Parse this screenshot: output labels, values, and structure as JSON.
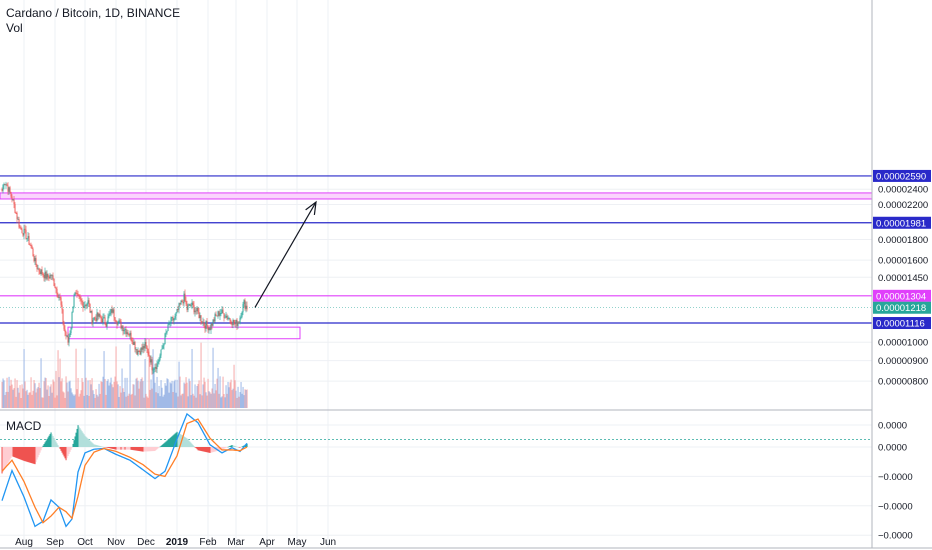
{
  "header": {
    "title": "Cardano / Bitcoin, 1D, BINANCE",
    "volume_label": "Vol",
    "macd_label": "MACD"
  },
  "colors": {
    "up": "#26a69a",
    "down": "#ef5350",
    "vol_up": "#9db7e6",
    "vol_down": "#f5a9a9",
    "blue_line": "#2929c9",
    "magenta": "#e040fb",
    "zone_fill": "#fbd5fd",
    "current_tag": "#26a69a",
    "macd_line": "#2196f3",
    "signal_line": "#ff7f27",
    "hist_up": "#26a69a",
    "hist_up_light": "#b2dfdb",
    "hist_down": "#ef5350",
    "hist_down_light": "#ffcdd2"
  },
  "chart_data": [
    {
      "type": "candlestick",
      "title": "Cardano / Bitcoin, 1D, BINANCE",
      "y_tick_labels": [
        "0.00002400",
        "0.00002200",
        "0.00001800",
        "0.00001600",
        "0.00001450",
        "0.00001000",
        "0.00000900",
        "0.00000800"
      ],
      "y_ticks": [
        2.4e-05,
        2.2e-05,
        1.8e-05,
        1.6e-05,
        1.45e-05,
        1e-05,
        9e-06,
        8e-06
      ],
      "x_tick_labels": [
        "Aug",
        "Sep",
        "Oct",
        "Nov",
        "Dec",
        "2019",
        "Feb",
        "Mar",
        "Apr",
        "May",
        "Jun"
      ],
      "last_price_label": "0.00001218",
      "horizontal_levels": [
        {
          "label": "0.00002590",
          "value": 2.59e-05,
          "color": "#2929c9"
        },
        {
          "label": "0.00001981",
          "value": 1.981e-05,
          "color": "#2929c9"
        },
        {
          "label": "0.00001304",
          "value": 1.304e-05,
          "color": "#e040fb"
        },
        {
          "label": "0.00001116",
          "value": 1.116e-05,
          "color": "#2929c9"
        }
      ],
      "zones": [
        {
          "name": "upper resistance zone",
          "from": 2.27e-05,
          "to": 2.35e-05
        },
        {
          "name": "lower support zone",
          "from": 1.02e-05,
          "to": 1.09e-05
        }
      ],
      "annotations": [
        {
          "type": "arrow",
          "from_date": "2019-03-20",
          "from_price": 1.22e-05,
          "to_date": "2019-05-20",
          "to_price": 2.23e-05
        }
      ],
      "grid": true,
      "price_scale_position": "right",
      "series": [
        {
          "name": "ADA/BTC",
          "kind": "close-price waypoints",
          "dates": [
            "2018-07-10",
            "2018-07-12",
            "2018-07-15",
            "2018-07-20",
            "2018-07-25",
            "2018-07-28",
            "2018-08-02",
            "2018-08-08",
            "2018-08-12",
            "2018-08-15",
            "2018-08-20",
            "2018-08-24",
            "2018-08-28",
            "2018-09-02",
            "2018-09-06",
            "2018-09-10",
            "2018-09-14",
            "2018-09-17",
            "2018-09-20",
            "2018-09-24",
            "2018-09-30",
            "2018-10-04",
            "2018-10-08",
            "2018-10-14",
            "2018-10-22",
            "2018-10-28",
            "2018-11-03",
            "2018-11-08",
            "2018-11-13",
            "2018-11-18",
            "2018-11-22",
            "2018-11-27",
            "2018-11-30",
            "2018-12-04",
            "2018-12-07",
            "2018-12-12",
            "2018-12-16",
            "2018-12-20",
            "2018-12-25",
            "2018-12-30",
            "2019-01-03",
            "2019-01-08",
            "2019-01-11",
            "2019-01-15",
            "2019-01-22",
            "2019-01-28",
            "2019-02-03",
            "2019-02-08",
            "2019-02-13",
            "2019-02-18",
            "2019-02-23",
            "2019-02-28",
            "2019-03-04",
            "2019-03-07",
            "2019-03-09",
            "2019-03-12"
          ],
          "values": [
            2.38e-05,
            2.52e-05,
            2.45e-05,
            2.28e-05,
            2.05e-05,
            1.92e-05,
            1.86e-05,
            1.73e-05,
            1.58e-05,
            1.52e-05,
            1.48e-05,
            1.45e-05,
            1.47e-05,
            1.36e-05,
            1.28e-05,
            1.08e-05,
            1e-05,
            1.1e-05,
            1.32e-05,
            1.28e-05,
            1.24e-05,
            1.26e-05,
            1.14e-05,
            1.16e-05,
            1.12e-05,
            1.2e-05,
            1.12e-05,
            1.09e-05,
            1.06e-05,
            1.01e-05,
            9.5e-06,
            9.6e-06,
            9.8e-06,
            9.3e-06,
            8.7e-06,
            8.8e-06,
            9.4e-06,
            1.03e-05,
            1.12e-05,
            1.15e-05,
            1.22e-05,
            1.29e-05,
            1.21e-05,
            1.24e-05,
            1.18e-05,
            1.11e-05,
            1.09e-05,
            1.15e-05,
            1.19e-05,
            1.17e-05,
            1.14e-05,
            1.11e-05,
            1.13e-05,
            1.21e-05,
            1.25e-05,
            1.22e-05
          ]
        },
        {
          "name": "Vol",
          "kind": "volume",
          "relative_level": "low-to-moderate with spikes near 2018-09-17, 2018-12-28, 2019-01-08 and 2019-03-07"
        }
      ]
    },
    {
      "type": "line",
      "title": "MACD",
      "y_tick_labels": [
        "0.0000",
        "0.0000",
        "−0.0000",
        "−0.0000",
        "−0.0000"
      ],
      "y_ticks": [
        3e-07,
        0,
        -4e-07,
        -8e-07,
        -1.2e-06
      ],
      "reference_line": 1e-07,
      "grid": true,
      "series": [
        {
          "name": "MACD",
          "color": "#2196f3",
          "dates": [
            "2018-07-10",
            "2018-07-20",
            "2018-08-01",
            "2018-08-12",
            "2018-08-20",
            "2018-08-28",
            "2018-09-05",
            "2018-09-12",
            "2018-09-18",
            "2018-09-24",
            "2018-10-01",
            "2018-10-10",
            "2018-10-20",
            "2018-11-01",
            "2018-11-15",
            "2018-11-28",
            "2018-12-10",
            "2018-12-20",
            "2019-01-01",
            "2019-01-11",
            "2019-01-22",
            "2019-02-03",
            "2019-02-15",
            "2019-02-25",
            "2019-03-05",
            "2019-03-12"
          ],
          "values": [
            -7.3e-07,
            -3.2e-07,
            -6.8e-07,
            -1.08e-06,
            -1.01e-06,
            -7.2e-07,
            -8.2e-07,
            -1.08e-06,
            -9.8e-07,
            -3.4e-07,
            -8e-08,
            -3e-08,
            -2e-08,
            -1e-07,
            -1.8e-07,
            -3.1e-07,
            -4.3e-07,
            -3.3e-07,
            1.1e-07,
            4.5e-07,
            3.3e-07,
            3e-08,
            -8e-08,
            -1e-08,
            -6e-08,
            5e-08
          ]
        },
        {
          "name": "Signal",
          "color": "#ff7f27",
          "dates": [
            "2018-07-10",
            "2018-07-20",
            "2018-08-01",
            "2018-08-12",
            "2018-08-20",
            "2018-08-28",
            "2018-09-05",
            "2018-09-12",
            "2018-09-18",
            "2018-09-24",
            "2018-10-01",
            "2018-10-10",
            "2018-10-20",
            "2018-11-01",
            "2018-11-15",
            "2018-11-28",
            "2018-12-10",
            "2018-12-20",
            "2019-01-01",
            "2019-01-11",
            "2019-01-22",
            "2019-02-03",
            "2019-02-15",
            "2019-02-25",
            "2019-03-05",
            "2019-03-12"
          ],
          "values": [
            -3.3e-07,
            -1.8e-07,
            -4.7e-07,
            -8.2e-07,
            -1.03e-06,
            -9.4e-07,
            -8.2e-07,
            -8.8e-07,
            -9.7e-07,
            -6.7e-07,
            -2.5e-07,
            -7e-08,
            -2e-08,
            -6e-08,
            -1.4e-07,
            -2.4e-07,
            -3.7e-07,
            -4e-07,
            -1.2e-07,
            3.2e-07,
            3.8e-07,
            1.2e-07,
            -4e-08,
            -4e-08,
            -5e-08,
            0.0
          ]
        }
      ]
    }
  ]
}
